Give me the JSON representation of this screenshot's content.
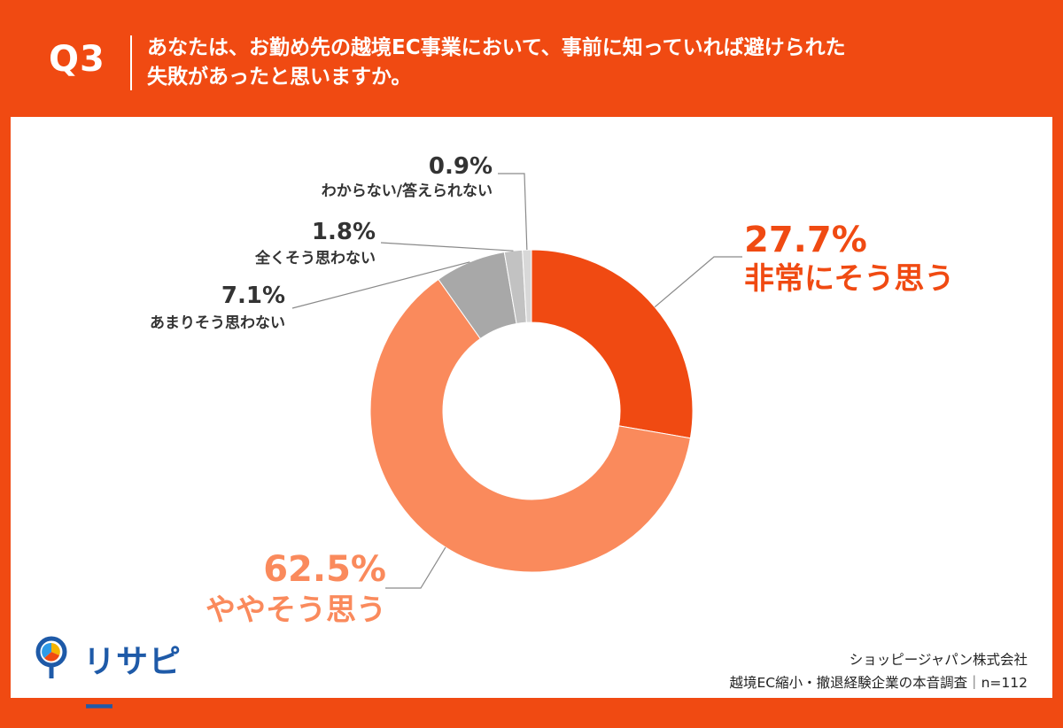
{
  "header": {
    "question_no": "Q3",
    "question_line1": "あなたは、お勤め先の越境EC事業において、事前に知っていれば避けられた",
    "question_line2": "失敗があったと思いますか。"
  },
  "colors": {
    "brand": "#F04A12",
    "strongly_agree": "#F04A12",
    "somewhat_agree": "#FA8A5C",
    "not_really": "#A8A8A8",
    "not_at_all": "#C2C2C2",
    "dont_know": "#D8D8D8",
    "logo_blue": "#1E5AA8"
  },
  "chart_data": {
    "type": "pie",
    "donut": true,
    "slices": [
      {
        "label": "非常にそう思う",
        "value": 27.7,
        "display": "27.7%",
        "color": "#F04A12"
      },
      {
        "label": "ややそう思う",
        "value": 62.5,
        "display": "62.5%",
        "color": "#FA8A5C"
      },
      {
        "label": "あまりそう思わない",
        "value": 7.1,
        "display": "7.1%",
        "color": "#A8A8A8"
      },
      {
        "label": "全くそう思わない",
        "value": 1.8,
        "display": "1.8%",
        "color": "#C2C2C2"
      },
      {
        "label": "わからない/答えられない",
        "value": 0.9,
        "display": "0.9%",
        "color": "#D8D8D8"
      }
    ]
  },
  "logo": {
    "text": "リサピー"
  },
  "source": {
    "company": "ショッピージャパン株式会社",
    "survey": "越境EC縮小・撤退経験企業の本音調査｜n=112"
  }
}
